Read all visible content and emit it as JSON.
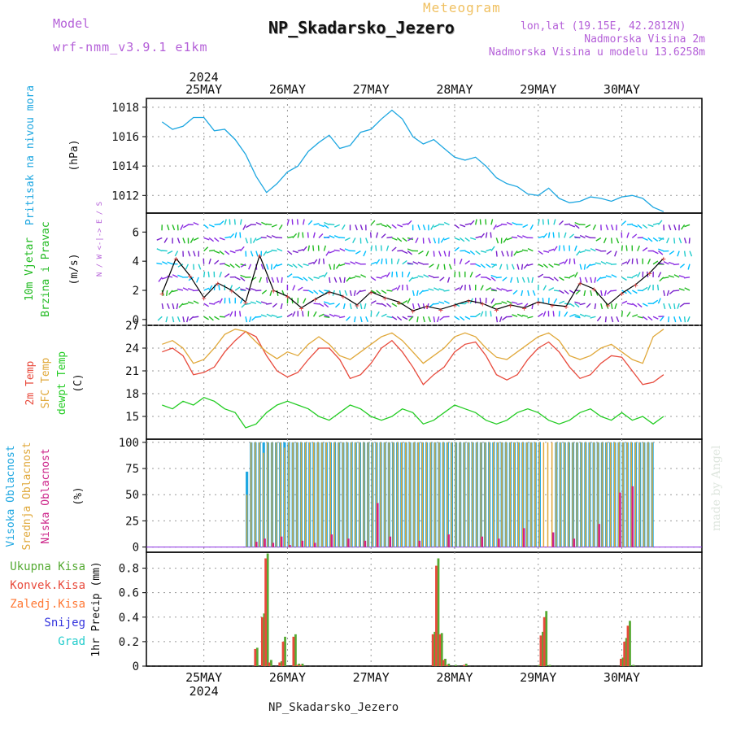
{
  "header": {
    "model_label": "Model",
    "model_name": "wrf-nmm_v3.9.1 e1km",
    "kind": "Meteogram",
    "title": "NP_Skadarsko_Jezero",
    "coords": "lon,lat (19.15E, 42.2812N)",
    "altitude": "Nadmorska Visina 2m",
    "model_altitude": "Nadmorska Visina u modelu 13.6258m"
  },
  "footer": {
    "station": "NP_Skadarsko_Jezero",
    "credit": "made by Angel"
  },
  "colors": {
    "pressure": "#1ea7e1",
    "wind_label": "#22bb22",
    "wind_speed": "#000000",
    "wind_barb_a": "#22cccc",
    "wind_barb_b": "#7a22cc",
    "wind_barb_c": "#22bb22",
    "temp2m": "#e84a3c",
    "sfc_temp": "#e0a83a",
    "dewpt": "#22cc22",
    "high_cloud": "#1ea7e1",
    "mid_cloud": "#e0a83a",
    "low_cloud": "#cc2288",
    "total_precip": "#55aa33",
    "conv_precip": "#e84a3c",
    "freezing_precip": "#ff7733",
    "snow": "#3333dd",
    "hail": "#22cccc",
    "title_purple": "#b45fd8"
  },
  "chart_data": [
    {
      "type": "line",
      "panel": "pressure",
      "ylabel": "Pritisak na nivou mora",
      "unit": "(hPa)",
      "ylim": [
        1010.8,
        1018.6
      ],
      "yticks": [
        1012,
        1014,
        1016,
        1018
      ],
      "x_days": [
        "25MAY",
        "26MAY",
        "27MAY",
        "28MAY",
        "29MAY",
        "30MAY"
      ],
      "year": "2024",
      "x": [
        0,
        3,
        6,
        9,
        12,
        15,
        18,
        21,
        24,
        27,
        30,
        33,
        36,
        39,
        42,
        45,
        48,
        51,
        54,
        57,
        60,
        63,
        66,
        69,
        72,
        75,
        78,
        81,
        84,
        87,
        90,
        93,
        96,
        99,
        102,
        105,
        108,
        111,
        114,
        117,
        120,
        123,
        126,
        129,
        132,
        135,
        138,
        141,
        144
      ],
      "values": [
        1017.0,
        1016.5,
        1016.7,
        1017.3,
        1017.3,
        1016.4,
        1016.5,
        1015.8,
        1014.8,
        1013.3,
        1012.2,
        1012.8,
        1013.6,
        1014.0,
        1015.0,
        1015.6,
        1016.1,
        1015.2,
        1015.4,
        1016.3,
        1016.5,
        1017.2,
        1017.8,
        1017.2,
        1016.0,
        1015.5,
        1015.8,
        1015.2,
        1014.6,
        1014.4,
        1014.6,
        1014.0,
        1013.2,
        1012.8,
        1012.6,
        1012.1,
        1012.0,
        1012.5,
        1011.8,
        1011.5,
        1011.6,
        1011.9,
        1011.8,
        1011.6,
        1011.9,
        1012.0,
        1011.8,
        1011.2,
        1010.9
      ]
    },
    {
      "type": "line",
      "panel": "wind",
      "ylabel": "10m Vjetar Brzina i Pravac",
      "unit": "(m/s)",
      "legend_glyph": "N / W <-|-> E / S",
      "ylim": [
        -0.4,
        7.3
      ],
      "yticks": [
        0,
        2,
        4,
        6
      ],
      "series": [
        {
          "name": "speed",
          "x": [
            0,
            4,
            8,
            12,
            16,
            20,
            24,
            28,
            32,
            36,
            40,
            44,
            48,
            52,
            56,
            60,
            64,
            68,
            72,
            76,
            80,
            84,
            88,
            92,
            96,
            100,
            104,
            108,
            112,
            116,
            120,
            124,
            128,
            132,
            136,
            140,
            144
          ],
          "values": [
            1.8,
            4.2,
            3.0,
            1.5,
            2.5,
            2.0,
            1.2,
            4.4,
            2.0,
            1.6,
            0.8,
            1.4,
            1.9,
            1.6,
            1.0,
            1.9,
            1.5,
            1.2,
            0.6,
            0.9,
            0.7,
            1.0,
            1.3,
            1.1,
            0.7,
            1.0,
            0.8,
            1.2,
            1.0,
            0.9,
            2.5,
            2.1,
            1.0,
            1.8,
            2.4,
            3.2,
            4.2
          ]
        }
      ]
    },
    {
      "type": "line",
      "panel": "temperature",
      "ylabel": "2m Temp / SFC Temp / dewpt Temp",
      "unit": "(C)",
      "ylim": [
        12,
        27
      ],
      "yticks": [
        15,
        18,
        21,
        24,
        27
      ],
      "series": [
        {
          "name": "2m Temp",
          "x": [
            0,
            3,
            6,
            9,
            12,
            15,
            18,
            21,
            24,
            27,
            30,
            33,
            36,
            39,
            42,
            45,
            48,
            51,
            54,
            57,
            60,
            63,
            66,
            69,
            72,
            75,
            78,
            81,
            84,
            87,
            90,
            93,
            96,
            99,
            102,
            105,
            108,
            111,
            114,
            117,
            120,
            123,
            126,
            129,
            132,
            135,
            138,
            141,
            144
          ],
          "values": [
            23.5,
            24.0,
            23.0,
            20.5,
            20.8,
            21.5,
            23.5,
            25.0,
            26.2,
            25.5,
            23.0,
            21.0,
            20.2,
            20.8,
            22.5,
            24.0,
            24.0,
            22.5,
            20.0,
            20.5,
            22.0,
            24.0,
            25.0,
            23.5,
            21.5,
            19.2,
            20.5,
            21.5,
            23.5,
            24.5,
            24.8,
            23.0,
            20.5,
            19.8,
            20.5,
            22.5,
            24.0,
            24.8,
            23.5,
            21.5,
            20.0,
            20.5,
            22.0,
            23.0,
            22.8,
            21.0,
            19.2,
            19.5,
            20.5
          ]
        },
        {
          "name": "SFC Temp",
          "x": [
            0,
            3,
            6,
            9,
            12,
            15,
            18,
            21,
            24,
            27,
            30,
            33,
            36,
            39,
            42,
            45,
            48,
            51,
            54,
            57,
            60,
            63,
            66,
            69,
            72,
            75,
            78,
            81,
            84,
            87,
            90,
            93,
            96,
            99,
            102,
            105,
            108,
            111,
            114,
            117,
            120,
            123,
            126,
            129,
            132,
            135,
            138,
            141,
            144
          ],
          "values": [
            24.5,
            25.0,
            24.0,
            22.0,
            22.5,
            24.0,
            25.8,
            26.5,
            26.2,
            24.8,
            23.5,
            22.6,
            23.5,
            23.0,
            24.5,
            25.5,
            24.5,
            23.0,
            22.5,
            23.5,
            24.5,
            25.5,
            26.0,
            25.0,
            23.5,
            22.0,
            23.0,
            24.0,
            25.5,
            26.0,
            25.5,
            24.0,
            22.8,
            22.5,
            23.5,
            24.5,
            25.5,
            26.0,
            25.0,
            23.0,
            22.5,
            23.0,
            24.0,
            24.5,
            23.5,
            22.5,
            22.0,
            25.5,
            26.5
          ]
        },
        {
          "name": "dewpt Temp",
          "x": [
            0,
            3,
            6,
            9,
            12,
            15,
            18,
            21,
            24,
            27,
            30,
            33,
            36,
            39,
            42,
            45,
            48,
            51,
            54,
            57,
            60,
            63,
            66,
            69,
            72,
            75,
            78,
            81,
            84,
            87,
            90,
            93,
            96,
            99,
            102,
            105,
            108,
            111,
            114,
            117,
            120,
            123,
            126,
            129,
            132,
            135,
            138,
            141,
            144
          ],
          "values": [
            16.5,
            16.0,
            17.0,
            16.5,
            17.5,
            17.0,
            16.0,
            15.5,
            13.5,
            14.0,
            15.5,
            16.5,
            17.0,
            16.5,
            16.0,
            15.0,
            14.5,
            15.5,
            16.5,
            16.0,
            15.0,
            14.5,
            15.0,
            16.0,
            15.5,
            14.0,
            14.5,
            15.5,
            16.5,
            16.0,
            15.5,
            14.5,
            14.0,
            14.5,
            15.5,
            16.0,
            15.5,
            14.5,
            14.0,
            14.5,
            15.5,
            16.0,
            15.0,
            14.5,
            15.5,
            14.5,
            15.0,
            14.0,
            15.0
          ]
        }
      ]
    },
    {
      "type": "bar",
      "panel": "clouds",
      "ylabel": "Visoka Oblacnost / Srednja Oblacnost / Niska Oblacnost",
      "unit": "(%)",
      "ylim": [
        -5,
        103
      ],
      "yticks": [
        0,
        25,
        50,
        75,
        100
      ],
      "bar_x_start": 24,
      "bar_x_step": 1.2,
      "series": [
        {
          "name": "Visoka Oblacnost",
          "values": [
            72,
            100,
            100,
            100,
            100,
            100,
            100,
            100,
            100,
            100,
            100,
            100,
            100,
            100,
            100,
            100,
            100,
            100,
            100,
            100,
            100,
            100,
            100,
            100,
            100,
            100,
            100,
            100,
            100,
            100,
            100,
            100,
            100,
            100,
            100,
            100,
            100,
            100,
            100,
            100,
            100,
            100,
            100,
            100,
            100,
            100,
            100,
            100,
            100,
            100,
            100,
            100,
            100,
            100,
            100,
            100,
            100,
            100,
            100,
            100,
            100,
            100,
            100,
            100,
            100,
            100,
            100,
            100,
            100,
            100,
            100,
            100,
            100,
            100,
            100,
            100,
            100,
            100,
            100,
            100,
            100,
            100,
            100,
            100,
            100,
            100,
            100,
            100,
            100,
            100,
            100,
            100,
            100,
            100,
            100,
            100,
            100,
            100
          ]
        },
        {
          "name": "Srednja Oblacnost",
          "values": [
            50,
            100,
            100,
            100,
            90,
            100,
            100,
            100,
            100,
            95,
            100,
            100,
            100,
            100,
            100,
            100,
            100,
            100,
            100,
            100,
            100,
            100,
            100,
            100,
            100,
            100,
            100,
            100,
            100,
            100,
            100,
            100,
            100,
            100,
            100,
            100,
            100,
            100,
            100,
            100,
            100,
            100,
            100,
            100,
            100,
            100,
            100,
            100,
            100,
            100,
            100,
            100,
            100,
            100,
            100,
            100,
            100,
            100,
            100,
            100,
            100,
            100,
            100,
            100,
            100,
            100,
            100,
            100,
            100,
            100,
            100,
            100,
            100,
            100,
            100,
            100,
            100,
            100,
            100,
            100,
            100,
            100,
            100,
            100,
            100,
            100,
            100,
            100,
            100,
            100,
            100,
            100,
            100,
            100,
            100,
            100,
            100,
            100
          ]
        },
        {
          "name": "Niska Oblacnost",
          "values": [
            0,
            0,
            5,
            0,
            8,
            0,
            4,
            0,
            10,
            0,
            2,
            0,
            0,
            6,
            0,
            0,
            4,
            0,
            0,
            0,
            12,
            0,
            0,
            0,
            8,
            0,
            0,
            0,
            6,
            0,
            0,
            42,
            0,
            0,
            10,
            0,
            0,
            0,
            0,
            0,
            0,
            6,
            0,
            0,
            0,
            0,
            0,
            0,
            12,
            0,
            0,
            0,
            0,
            0,
            0,
            0,
            10,
            0,
            0,
            0,
            8,
            0,
            0,
            0,
            0,
            0,
            18,
            0,
            0,
            0,
            0,
            0,
            0,
            14,
            0,
            0,
            0,
            0,
            8,
            0,
            0,
            0,
            0,
            0,
            22,
            0,
            0,
            0,
            0,
            52,
            0,
            0,
            58,
            0,
            0,
            0,
            0,
            0
          ]
        }
      ]
    },
    {
      "type": "bar",
      "panel": "precipitation",
      "ylabel": "1hr Precip",
      "unit": "(mm)",
      "ylim": [
        0,
        0.93
      ],
      "yticks": [
        0,
        0.2,
        0.4,
        0.6,
        0.8
      ],
      "legend": [
        "Ukupna Kisa",
        "Konvek.Kisa",
        "Zaledj.Kisa",
        "Snijeg",
        "Grad"
      ],
      "series": [
        {
          "name": "Ukupna Kisa",
          "x": [
            27,
            29,
            30,
            31,
            34,
            35,
            38,
            39,
            40,
            78,
            79,
            80,
            81,
            82,
            84,
            87,
            108,
            109,
            110,
            111,
            132,
            133,
            134,
            135
          ],
          "values": [
            0.15,
            0.43,
            0.92,
            0.05,
            0.04,
            0.24,
            0.26,
            0.02,
            0.02,
            0.28,
            0.88,
            0.27,
            0.06,
            0.02,
            0.01,
            0.02,
            0.01,
            0.28,
            0.45,
            0.01,
            0.07,
            0.23,
            0.37,
            0.01
          ]
        },
        {
          "name": "Konvek.Kisa",
          "x": [
            27,
            29,
            30,
            31,
            34,
            35,
            38,
            39,
            40,
            78,
            79,
            80,
            81,
            82,
            84,
            87,
            108,
            109,
            110,
            111,
            132,
            133,
            134,
            135
          ],
          "values": [
            0.14,
            0.4,
            0.88,
            0.03,
            0.03,
            0.2,
            0.24,
            0.01,
            0.01,
            0.26,
            0.82,
            0.26,
            0.05,
            0.01,
            0.0,
            0.01,
            0.0,
            0.25,
            0.4,
            0.0,
            0.06,
            0.2,
            0.33,
            0.0
          ]
        }
      ],
      "sample_points": [
        [
          30,
          0.92
        ],
        [
          79,
          0.88
        ],
        [
          110,
          0.45
        ],
        [
          134,
          0.37
        ]
      ]
    }
  ]
}
